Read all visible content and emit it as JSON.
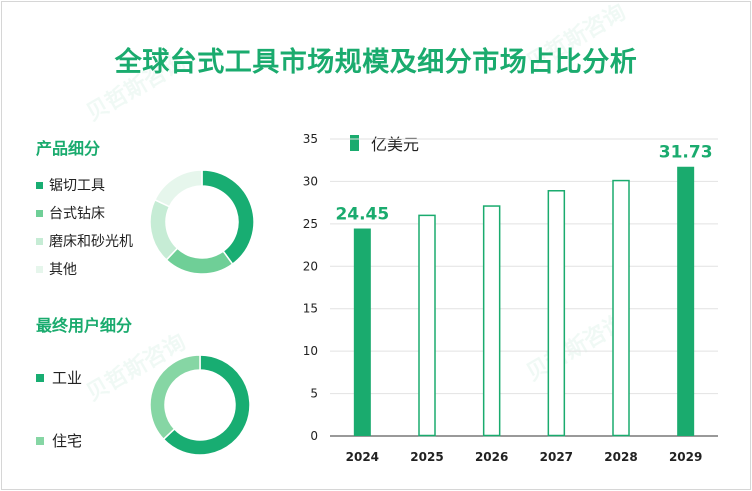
{
  "title": "全球台式工具市场规模及细分市场占比分析",
  "colors": {
    "accent": "#1aab6e",
    "grid": "#e2e2e2",
    "axis": "#333333"
  },
  "product_segment": {
    "title": "产品细分",
    "items": [
      {
        "label": "锯切工具",
        "color": "#18ad72",
        "share": 0.4
      },
      {
        "label": "台式钻床",
        "color": "#6fcf97",
        "share": 0.22
      },
      {
        "label": "磨床和砂光机",
        "color": "#c6ecd5",
        "share": 0.2
      },
      {
        "label": "其他",
        "color": "#e6f6ec",
        "share": 0.18
      }
    ]
  },
  "enduser_segment": {
    "title": "最终用户细分",
    "items": [
      {
        "label": "工业",
        "color": "#18ad72",
        "share": 0.63
      },
      {
        "label": "住宅",
        "color": "#86d6a4",
        "share": 0.37
      }
    ]
  },
  "watermark": "贝哲斯咨询",
  "chart_data": {
    "type": "bar",
    "unit_label": "亿美元",
    "categories": [
      "2024",
      "2025",
      "2026",
      "2027",
      "2028",
      "2029"
    ],
    "values": [
      24.45,
      26.0,
      27.1,
      28.9,
      30.1,
      31.73
    ],
    "filled": [
      true,
      false,
      false,
      false,
      false,
      true
    ],
    "data_labels": [
      "24.45",
      "",
      "",
      "",
      "",
      "31.73"
    ],
    "ylim": [
      0,
      35
    ],
    "yticks": [
      "0",
      "5",
      "10",
      "15",
      "20",
      "25",
      "30",
      "35"
    ],
    "grid": true
  }
}
